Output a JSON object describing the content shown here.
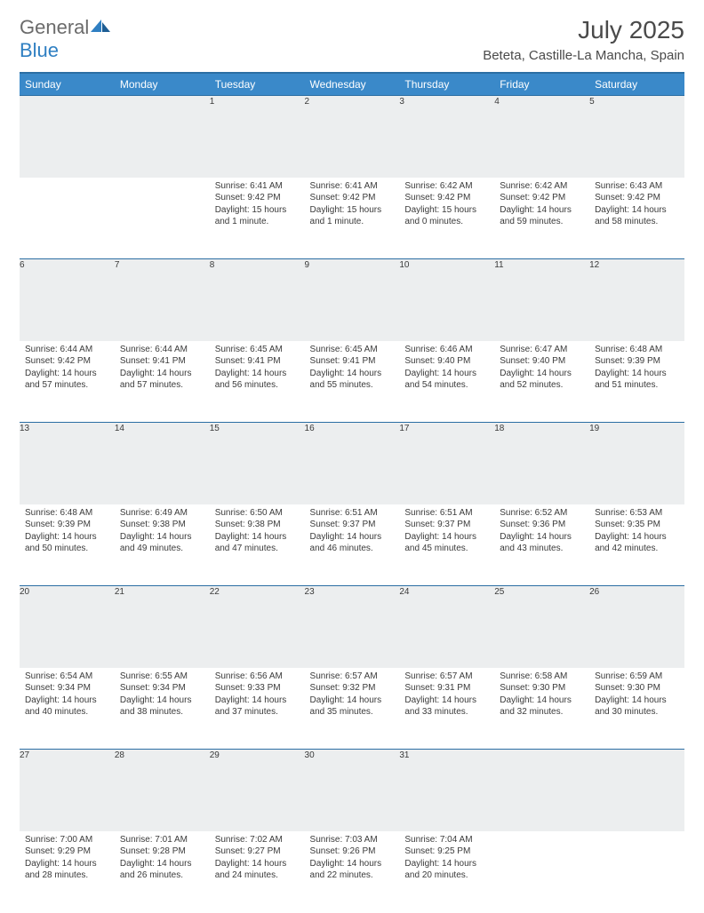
{
  "logo": {
    "word1": "General",
    "word2": "Blue"
  },
  "title": "July 2025",
  "location": "Beteta, Castille-La Mancha, Spain",
  "colors": {
    "header_bg": "#3a89c9",
    "header_border": "#2b6ea3",
    "daynum_bg": "#eceeef",
    "text": "#3a3a3a",
    "logo_gray": "#6b6b6b",
    "logo_blue": "#2f7fc2"
  },
  "weekdays": [
    "Sunday",
    "Monday",
    "Tuesday",
    "Wednesday",
    "Thursday",
    "Friday",
    "Saturday"
  ],
  "weeks": [
    [
      {
        "n": "",
        "sunrise": "",
        "sunset": "",
        "daylight": ""
      },
      {
        "n": "",
        "sunrise": "",
        "sunset": "",
        "daylight": ""
      },
      {
        "n": "1",
        "sunrise": "6:41 AM",
        "sunset": "9:42 PM",
        "daylight": "15 hours and 1 minute."
      },
      {
        "n": "2",
        "sunrise": "6:41 AM",
        "sunset": "9:42 PM",
        "daylight": "15 hours and 1 minute."
      },
      {
        "n": "3",
        "sunrise": "6:42 AM",
        "sunset": "9:42 PM",
        "daylight": "15 hours and 0 minutes."
      },
      {
        "n": "4",
        "sunrise": "6:42 AM",
        "sunset": "9:42 PM",
        "daylight": "14 hours and 59 minutes."
      },
      {
        "n": "5",
        "sunrise": "6:43 AM",
        "sunset": "9:42 PM",
        "daylight": "14 hours and 58 minutes."
      }
    ],
    [
      {
        "n": "6",
        "sunrise": "6:44 AM",
        "sunset": "9:42 PM",
        "daylight": "14 hours and 57 minutes."
      },
      {
        "n": "7",
        "sunrise": "6:44 AM",
        "sunset": "9:41 PM",
        "daylight": "14 hours and 57 minutes."
      },
      {
        "n": "8",
        "sunrise": "6:45 AM",
        "sunset": "9:41 PM",
        "daylight": "14 hours and 56 minutes."
      },
      {
        "n": "9",
        "sunrise": "6:45 AM",
        "sunset": "9:41 PM",
        "daylight": "14 hours and 55 minutes."
      },
      {
        "n": "10",
        "sunrise": "6:46 AM",
        "sunset": "9:40 PM",
        "daylight": "14 hours and 54 minutes."
      },
      {
        "n": "11",
        "sunrise": "6:47 AM",
        "sunset": "9:40 PM",
        "daylight": "14 hours and 52 minutes."
      },
      {
        "n": "12",
        "sunrise": "6:48 AM",
        "sunset": "9:39 PM",
        "daylight": "14 hours and 51 minutes."
      }
    ],
    [
      {
        "n": "13",
        "sunrise": "6:48 AM",
        "sunset": "9:39 PM",
        "daylight": "14 hours and 50 minutes."
      },
      {
        "n": "14",
        "sunrise": "6:49 AM",
        "sunset": "9:38 PM",
        "daylight": "14 hours and 49 minutes."
      },
      {
        "n": "15",
        "sunrise": "6:50 AM",
        "sunset": "9:38 PM",
        "daylight": "14 hours and 47 minutes."
      },
      {
        "n": "16",
        "sunrise": "6:51 AM",
        "sunset": "9:37 PM",
        "daylight": "14 hours and 46 minutes."
      },
      {
        "n": "17",
        "sunrise": "6:51 AM",
        "sunset": "9:37 PM",
        "daylight": "14 hours and 45 minutes."
      },
      {
        "n": "18",
        "sunrise": "6:52 AM",
        "sunset": "9:36 PM",
        "daylight": "14 hours and 43 minutes."
      },
      {
        "n": "19",
        "sunrise": "6:53 AM",
        "sunset": "9:35 PM",
        "daylight": "14 hours and 42 minutes."
      }
    ],
    [
      {
        "n": "20",
        "sunrise": "6:54 AM",
        "sunset": "9:34 PM",
        "daylight": "14 hours and 40 minutes."
      },
      {
        "n": "21",
        "sunrise": "6:55 AM",
        "sunset": "9:34 PM",
        "daylight": "14 hours and 38 minutes."
      },
      {
        "n": "22",
        "sunrise": "6:56 AM",
        "sunset": "9:33 PM",
        "daylight": "14 hours and 37 minutes."
      },
      {
        "n": "23",
        "sunrise": "6:57 AM",
        "sunset": "9:32 PM",
        "daylight": "14 hours and 35 minutes."
      },
      {
        "n": "24",
        "sunrise": "6:57 AM",
        "sunset": "9:31 PM",
        "daylight": "14 hours and 33 minutes."
      },
      {
        "n": "25",
        "sunrise": "6:58 AM",
        "sunset": "9:30 PM",
        "daylight": "14 hours and 32 minutes."
      },
      {
        "n": "26",
        "sunrise": "6:59 AM",
        "sunset": "9:30 PM",
        "daylight": "14 hours and 30 minutes."
      }
    ],
    [
      {
        "n": "27",
        "sunrise": "7:00 AM",
        "sunset": "9:29 PM",
        "daylight": "14 hours and 28 minutes."
      },
      {
        "n": "28",
        "sunrise": "7:01 AM",
        "sunset": "9:28 PM",
        "daylight": "14 hours and 26 minutes."
      },
      {
        "n": "29",
        "sunrise": "7:02 AM",
        "sunset": "9:27 PM",
        "daylight": "14 hours and 24 minutes."
      },
      {
        "n": "30",
        "sunrise": "7:03 AM",
        "sunset": "9:26 PM",
        "daylight": "14 hours and 22 minutes."
      },
      {
        "n": "31",
        "sunrise": "7:04 AM",
        "sunset": "9:25 PM",
        "daylight": "14 hours and 20 minutes."
      },
      {
        "n": "",
        "sunrise": "",
        "sunset": "",
        "daylight": ""
      },
      {
        "n": "",
        "sunrise": "",
        "sunset": "",
        "daylight": ""
      }
    ]
  ],
  "labels": {
    "sunrise": "Sunrise:",
    "sunset": "Sunset:",
    "daylight": "Daylight:"
  }
}
